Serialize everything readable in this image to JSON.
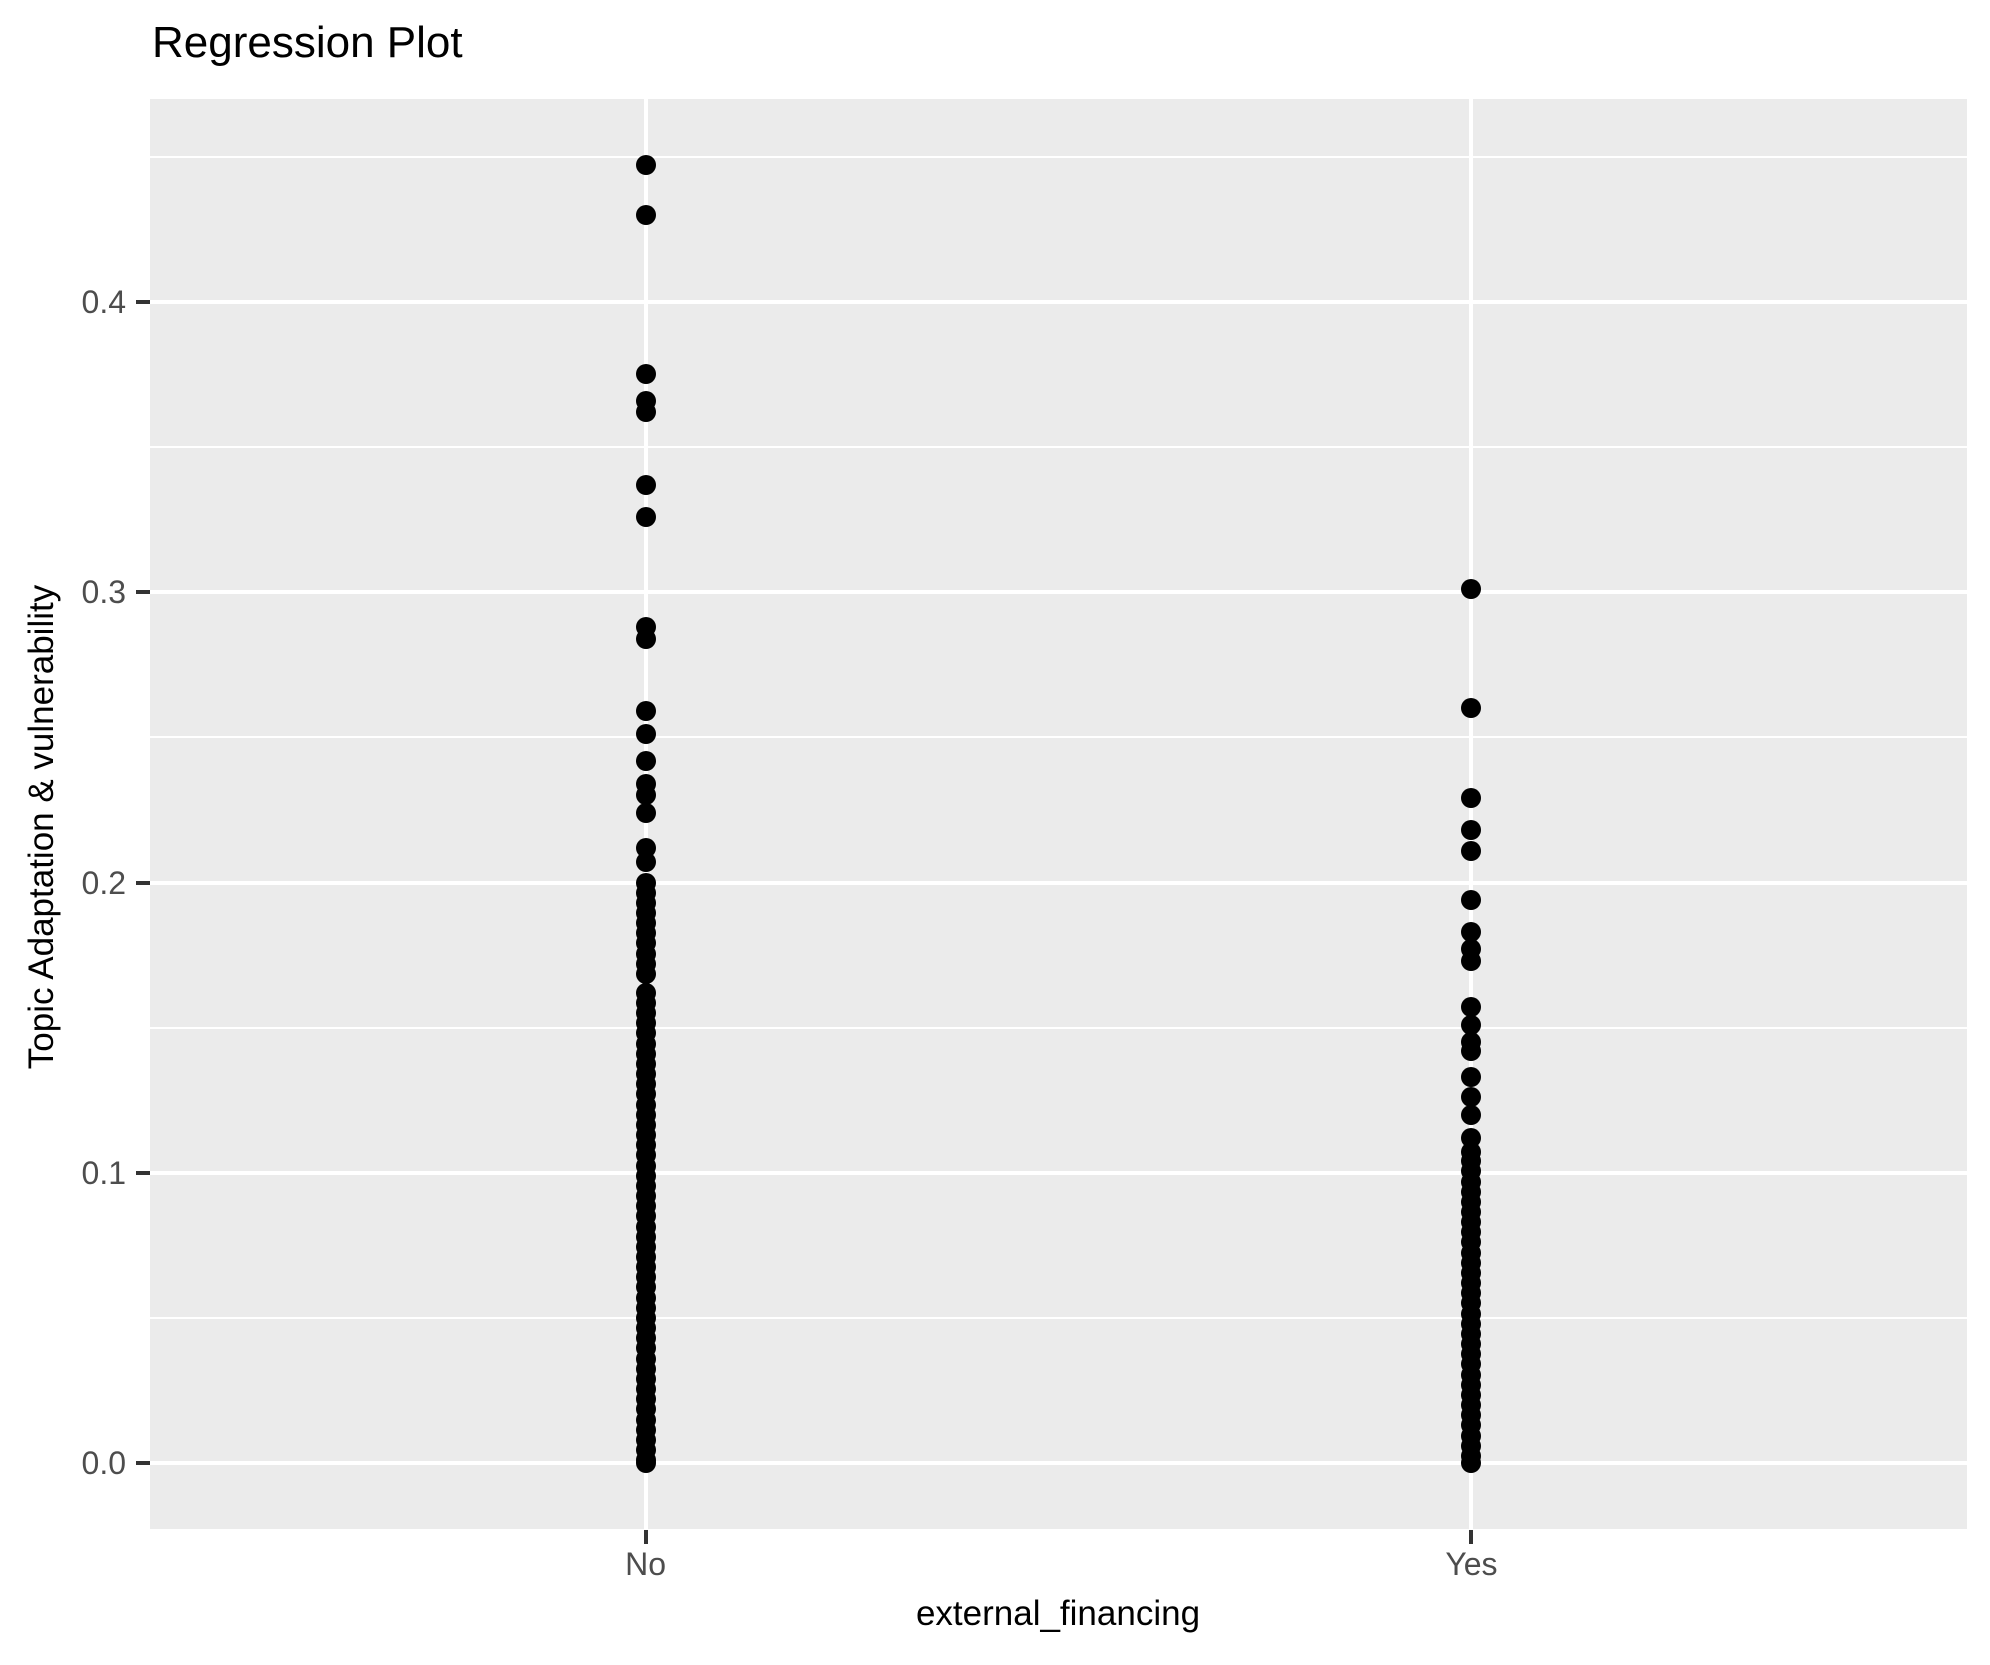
{
  "figure": {
    "title": "Regression Plot"
  },
  "chart_data": {
    "type": "scatter",
    "title": "Regression Plot",
    "xlabel": "external_financing",
    "ylabel": "Topic Adaptation & vulnerability",
    "categories": [
      "No",
      "Yes"
    ],
    "ylim": [
      -0.0227,
      0.4699
    ],
    "grid": true,
    "legend": false,
    "point_color": "#000000",
    "panel_bg": "#EBEBEB",
    "grid_color": "#FFFFFF",
    "tick_text_color": "#4D4D4D",
    "y_ticks": {
      "values": [
        0.0,
        0.1,
        0.2,
        0.3,
        0.4
      ],
      "labels": [
        "0.0",
        "0.1",
        "0.2",
        "0.3",
        "0.4"
      ]
    },
    "y_minor_ticks": [
      0.05,
      0.15,
      0.25,
      0.35,
      0.45
    ],
    "series": [
      {
        "name": "No",
        "values": [
          0.447,
          0.43,
          0.375,
          0.366,
          0.362,
          0.337,
          0.326,
          0.288,
          0.284,
          0.259,
          0.251,
          0.242,
          0.234,
          0.23,
          0.224,
          0.212,
          0.207,
          0.2,
          0.1965,
          0.193,
          0.1895,
          0.186,
          0.1825,
          0.179,
          0.1755,
          0.172,
          0.1685,
          0.162,
          0.1585,
          0.155,
          0.1515,
          0.148,
          0.1445,
          0.141,
          0.1375,
          0.134,
          0.1305,
          0.127,
          0.1235,
          0.12,
          0.1165,
          0.113,
          0.1095,
          0.106,
          0.1025,
          0.099,
          0.0955,
          0.092,
          0.0885,
          0.085,
          0.0815,
          0.078,
          0.0745,
          0.071,
          0.0675,
          0.064,
          0.0605,
          0.057,
          0.0535,
          0.05,
          0.0465,
          0.043,
          0.0395,
          0.036,
          0.0325,
          0.029,
          0.0255,
          0.022,
          0.0185,
          0.015,
          0.0115,
          0.008,
          0.0045,
          0.001,
          0.0
        ]
      },
      {
        "name": "Yes",
        "values": [
          0.301,
          0.26,
          0.229,
          0.218,
          0.211,
          0.194,
          0.183,
          0.177,
          0.173,
          0.157,
          0.151,
          0.145,
          0.142,
          0.133,
          0.126,
          0.12,
          0.112,
          0.107,
          0.104,
          0.1005,
          0.097,
          0.0935,
          0.09,
          0.0865,
          0.083,
          0.0795,
          0.076,
          0.0725,
          0.069,
          0.0655,
          0.062,
          0.0585,
          0.055,
          0.0515,
          0.048,
          0.0445,
          0.041,
          0.0375,
          0.034,
          0.0305,
          0.027,
          0.0235,
          0.02,
          0.0165,
          0.013,
          0.0095,
          0.006,
          0.0025,
          0.0
        ]
      }
    ]
  }
}
